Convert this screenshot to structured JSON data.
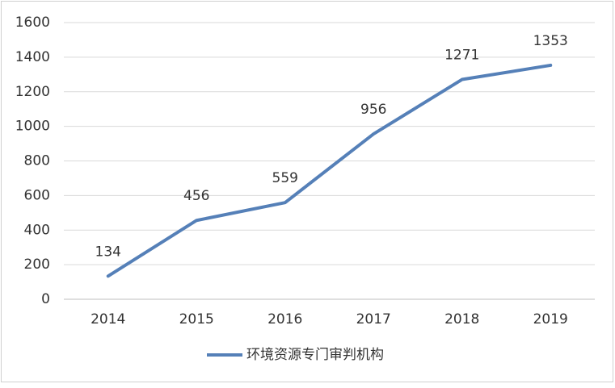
{
  "chart_data": {
    "type": "line",
    "categories": [
      "2014",
      "2015",
      "2016",
      "2017",
      "2018",
      "2019"
    ],
    "series": [
      {
        "name": "环境资源专门审判机构",
        "color": "#5580b8",
        "values": [
          134,
          456,
          559,
          956,
          1271,
          1353
        ]
      }
    ],
    "ylim": [
      0,
      1600
    ],
    "yticks": [
      0,
      200,
      400,
      600,
      800,
      1000,
      1200,
      1400,
      1600
    ],
    "grid": true,
    "legend": "bottom"
  }
}
